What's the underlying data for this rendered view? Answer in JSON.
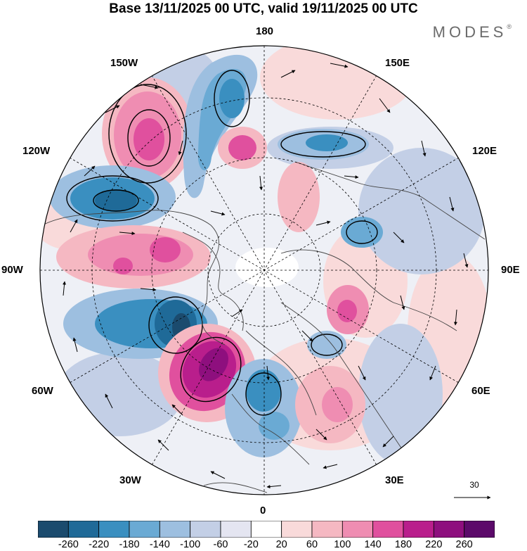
{
  "header": {
    "title": "Base 13/11/2025 00 UTC, valid 19/11/2025 00 UTC",
    "brand": "MODES"
  },
  "map": {
    "projection": "north-polar-stereographic",
    "longitude_labels": {
      "top": "180",
      "bottom": "0",
      "left": "90W",
      "right": "90E",
      "upper_left_outer": "150W",
      "upper_left_inner": "120W",
      "upper_right_outer": "150E",
      "upper_right_inner": "120E",
      "lower_left_inner": "60W",
      "lower_left_outer": "30W",
      "lower_right_inner": "60E",
      "lower_right_outer": "30E"
    },
    "reference_vector": {
      "value": "30"
    }
  },
  "colorbar": {
    "ticks": [
      "-260",
      "-220",
      "-180",
      "-140",
      "-100",
      "-60",
      "-20",
      "20",
      "60",
      "100",
      "140",
      "180",
      "220",
      "260"
    ],
    "colors": [
      "#1b4b6e",
      "#1f6a98",
      "#3a8fc0",
      "#6aaad4",
      "#9dbfe0",
      "#c3cfe6",
      "#e4e5f1",
      "#ffffff",
      "#f9dada",
      "#f5b8c2",
      "#ef8db2",
      "#e0509e",
      "#b91e8c",
      "#8e0f7e",
      "#5c0a6a"
    ]
  }
}
